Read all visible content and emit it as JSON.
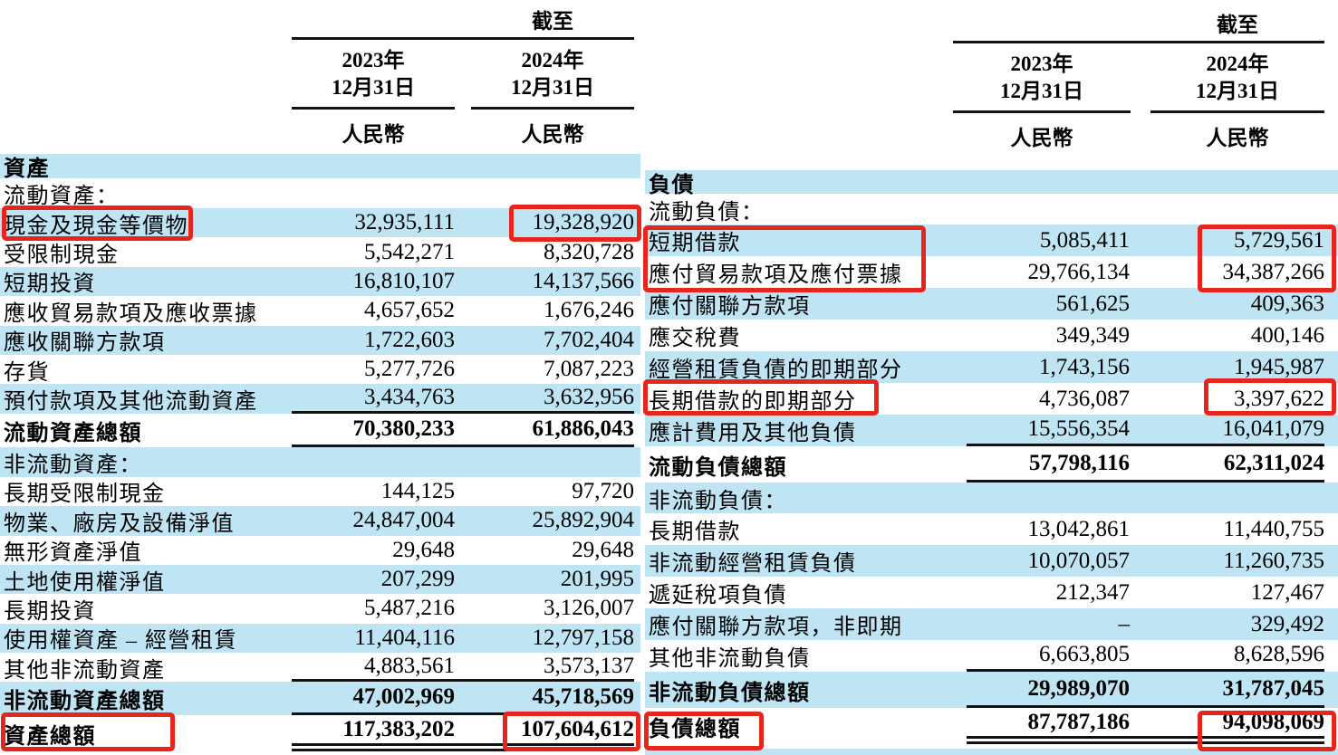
{
  "page": {
    "background": "#ffffff",
    "row_highlight_color": "#bfe5f4",
    "annotation_color": "#e6251d",
    "rule_color": "#121212"
  },
  "column_header": {
    "as_of": "截至",
    "year_2023": "2023年",
    "year_2024": "2024年",
    "date_label": "12月31日",
    "currency": "人民幣"
  },
  "assets_table": {
    "rows": [
      {
        "label": "資產",
        "v2023": "",
        "v2024": "",
        "type": "section",
        "shade": "blue"
      },
      {
        "label": "流動資產：",
        "v2023": "",
        "v2024": "",
        "type": "subhead",
        "shade": "white"
      },
      {
        "label": "現金及現金等價物",
        "v2023": "32,935,111",
        "v2024": "19,328,920",
        "type": "data",
        "shade": "blue"
      },
      {
        "label": "受限制現金",
        "v2023": "5,542,271",
        "v2024": "8,320,728",
        "type": "data",
        "shade": "white"
      },
      {
        "label": "短期投資",
        "v2023": "16,810,107",
        "v2024": "14,137,566",
        "type": "data",
        "shade": "blue"
      },
      {
        "label": "應收貿易款項及應收票據",
        "v2023": "4,657,652",
        "v2024": "1,676,246",
        "type": "data",
        "shade": "white"
      },
      {
        "label": "應收關聯方款項",
        "v2023": "1,722,603",
        "v2024": "7,702,404",
        "type": "data",
        "shade": "blue"
      },
      {
        "label": "存貨",
        "v2023": "5,277,726",
        "v2024": "7,087,223",
        "type": "data",
        "shade": "white"
      },
      {
        "label": "預付款項及其他流動資產",
        "v2023": "3,434,763",
        "v2024": "3,632,956",
        "type": "pre_total",
        "shade": "blue"
      },
      {
        "label": "流動資產總額",
        "v2023": "70,380,233",
        "v2024": "61,886,043",
        "type": "total",
        "shade": "white"
      },
      {
        "label": "非流動資產：",
        "v2023": "",
        "v2024": "",
        "type": "subhead",
        "shade": "blue"
      },
      {
        "label": "長期受限制現金",
        "v2023": "144,125",
        "v2024": "97,720",
        "type": "data",
        "shade": "white"
      },
      {
        "label": "物業、廠房及設備淨值",
        "v2023": "24,847,004",
        "v2024": "25,892,904",
        "type": "data",
        "shade": "blue"
      },
      {
        "label": "無形資產淨值",
        "v2023": "29,648",
        "v2024": "29,648",
        "type": "data",
        "shade": "white"
      },
      {
        "label": "土地使用權淨值",
        "v2023": "207,299",
        "v2024": "201,995",
        "type": "data",
        "shade": "blue"
      },
      {
        "label": "長期投資",
        "v2023": "5,487,216",
        "v2024": "3,126,007",
        "type": "data",
        "shade": "white"
      },
      {
        "label": "使用權資產 – 經營租賃",
        "v2023": "11,404,116",
        "v2024": "12,797,158",
        "type": "data",
        "shade": "blue"
      },
      {
        "label": "其他非流動資產",
        "v2023": "4,883,561",
        "v2024": "3,573,137",
        "type": "pre_total",
        "shade": "white"
      },
      {
        "label": "非流動資產總額",
        "v2023": "47,002,969",
        "v2024": "45,718,569",
        "type": "total",
        "shade": "blue"
      },
      {
        "label": "資產總額",
        "v2023": "117,383,202",
        "v2024": "107,604,612",
        "type": "grand_total",
        "shade": "white"
      }
    ]
  },
  "liabilities_table": {
    "rows": [
      {
        "label": "負債",
        "v2023": "",
        "v2024": "",
        "type": "section",
        "shade": "blue"
      },
      {
        "label": "流動負債：",
        "v2023": "",
        "v2024": "",
        "type": "subhead",
        "shade": "white"
      },
      {
        "label": "短期借款",
        "v2023": "5,085,411",
        "v2024": "5,729,561",
        "type": "data",
        "shade": "blue"
      },
      {
        "label": "應付貿易款項及應付票據",
        "v2023": "29,766,134",
        "v2024": "34,387,266",
        "type": "data",
        "shade": "white"
      },
      {
        "label": "應付關聯方款項",
        "v2023": "561,625",
        "v2024": "409,363",
        "type": "data",
        "shade": "blue"
      },
      {
        "label": "應交稅費",
        "v2023": "349,349",
        "v2024": "400,146",
        "type": "data",
        "shade": "white"
      },
      {
        "label": "經營租賃負債的即期部分",
        "v2023": "1,743,156",
        "v2024": "1,945,987",
        "type": "data",
        "shade": "blue"
      },
      {
        "label": "長期借款的即期部分",
        "v2023": "4,736,087",
        "v2024": "3,397,622",
        "type": "data",
        "shade": "white"
      },
      {
        "label": "應計費用及其他負債",
        "v2023": "15,556,354",
        "v2024": "16,041,079",
        "type": "pre_total",
        "shade": "blue"
      },
      {
        "label": "流動負債總額",
        "v2023": "57,798,116",
        "v2024": "62,311,024",
        "type": "total",
        "shade": "white"
      },
      {
        "label": "非流動負債：",
        "v2023": "",
        "v2024": "",
        "type": "subhead",
        "shade": "blue"
      },
      {
        "label": "長期借款",
        "v2023": "13,042,861",
        "v2024": "11,440,755",
        "type": "data",
        "shade": "white"
      },
      {
        "label": "非流動經營租賃負債",
        "v2023": "10,070,057",
        "v2024": "11,260,735",
        "type": "data",
        "shade": "blue"
      },
      {
        "label": "遞延稅項負債",
        "v2023": "212,347",
        "v2024": "127,467",
        "type": "data",
        "shade": "white"
      },
      {
        "label": "應付關聯方款項，非即期",
        "v2023": "–",
        "v2024": "329,492",
        "type": "data",
        "shade": "blue"
      },
      {
        "label": "其他非流動負債",
        "v2023": "6,663,805",
        "v2024": "8,628,596",
        "type": "pre_total",
        "shade": "white"
      },
      {
        "label": "非流動負債總額",
        "v2023": "29,989,070",
        "v2024": "31,787,045",
        "type": "total",
        "shade": "blue"
      },
      {
        "label": "負債總額",
        "v2023": "87,787,186",
        "v2024": "94,098,069",
        "type": "grand_total",
        "shade": "white"
      }
    ]
  },
  "highlights": {
    "color": "#e6251d",
    "boxed": [
      {
        "rows": [
          "現金及現金等價物"
        ],
        "parts": [
          "label",
          "2024-value"
        ]
      },
      {
        "rows": [
          "資產總額"
        ],
        "parts": [
          "label",
          "2024-value"
        ]
      },
      {
        "rows": [
          "短期借款",
          "應付貿易款項及應付票據"
        ],
        "parts": [
          "label",
          "2024-value"
        ]
      },
      {
        "rows": [
          "長期借款的即期部分"
        ],
        "parts": [
          "label",
          "2024-value"
        ]
      },
      {
        "rows": [
          "負債總額"
        ],
        "parts": [
          "label",
          "2024-value"
        ]
      }
    ]
  }
}
